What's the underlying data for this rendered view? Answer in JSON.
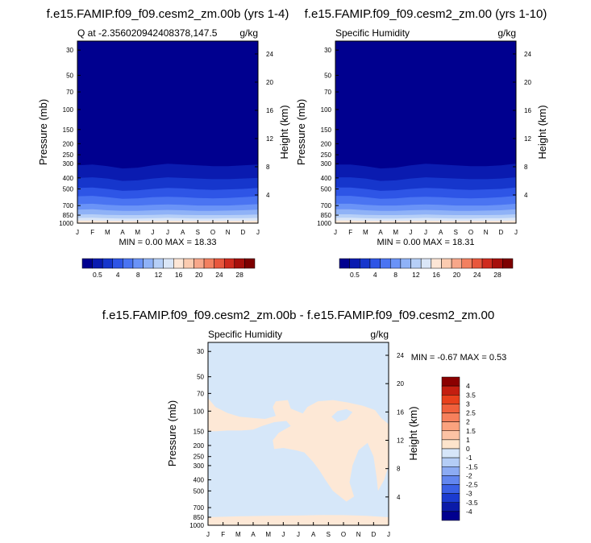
{
  "panels": [
    {
      "title": "f.e15.FAMIP.f09_f09.cesm2_zm.00b (yrs 1-4)",
      "left_label": "Q at -2.356020942408378,147.5",
      "right_label": "g/kg",
      "ylabel": "Pressure (mb)",
      "ylabel_right": "Height (km)",
      "stats": "MIN =   0.00 MAX =  18.33"
    },
    {
      "title": "f.e15.FAMIP.f09_f09.cesm2_zm.00 (yrs 1-10)",
      "left_label": "Specific Humidity",
      "right_label": "g/kg",
      "ylabel": "Pressure (mb)",
      "ylabel_right": "Height (km)",
      "stats": "MIN =   0.00 MAX =  18.31"
    },
    {
      "title": "f.e15.FAMIP.f09_f09.cesm2_zm.00b - f.e15.FAMIP.f09_f09.cesm2_zm.00",
      "left_label": "Specific Humidity",
      "right_label": "g/kg",
      "ylabel": "Pressure (mb)",
      "ylabel_right": "Height (km)",
      "stats": "MIN =  -0.67 MAX =   0.53"
    }
  ],
  "months": [
    "J",
    "F",
    "M",
    "A",
    "M",
    "J",
    "J",
    "A",
    "S",
    "O",
    "N",
    "D",
    "J"
  ],
  "pressure_ticks": [
    "30",
    "50",
    "70",
    "100",
    "150",
    "200",
    "250",
    "300",
    "400",
    "500",
    "700",
    "850",
    "1000"
  ],
  "height_ticks": [
    "24",
    "20",
    "16",
    "12",
    "8",
    "4"
  ],
  "colorbar_top": {
    "labels": [
      "0.5",
      "4",
      "8",
      "12",
      "16",
      "20",
      "24",
      "28"
    ],
    "colors": [
      "#00008f",
      "#0a1bb0",
      "#1636cc",
      "#2e55e6",
      "#4a74f2",
      "#6a93f7",
      "#8fb2f7",
      "#b6cff7",
      "#dae6f7",
      "#fde6d6",
      "#fbcbb0",
      "#f7a78a",
      "#f28060",
      "#e8573d",
      "#cf2b1e",
      "#a60f0b",
      "#7d0000"
    ]
  },
  "colorbar_diff": {
    "labels": [
      "4",
      "3.5",
      "3",
      "2.5",
      "2",
      "1.5",
      "1",
      "0",
      "-1",
      "-1.5",
      "-2",
      "-2.5",
      "-3",
      "-3.5",
      "-4"
    ],
    "colors": [
      "#8b0000",
      "#c41e10",
      "#e8401c",
      "#f0603c",
      "#f6805c",
      "#fba27e",
      "#fcc2a4",
      "#fde4cc",
      "#d6e6f9",
      "#b4cdf6",
      "#8cabf3",
      "#6286ef",
      "#3a60e6",
      "#1b3bd0",
      "#0a1aa8",
      "#00008f"
    ]
  },
  "field_colors": {
    "top_band": "#00008f",
    "diff_positive": "#fde8d6",
    "diff_negative": "#d6e7f9"
  },
  "chart_data": [
    {
      "type": "heatmap",
      "title": "f.e15.FAMIP.f09_f09.cesm2_zm.00b (yrs 1-4)",
      "variable": "Q at -2.356020942408378,147.5",
      "units": "g/kg",
      "x": [
        "J",
        "F",
        "M",
        "A",
        "M",
        "J",
        "J",
        "A",
        "S",
        "O",
        "N",
        "D",
        "J"
      ],
      "y_pressure_mb": [
        30,
        50,
        70,
        100,
        150,
        200,
        250,
        300,
        400,
        500,
        700,
        850,
        1000
      ],
      "y_height_km": [
        24,
        20,
        16,
        12,
        8,
        4
      ],
      "min": 0.0,
      "max": 18.33,
      "contour_levels": [
        0.5,
        2,
        4,
        6,
        8,
        10,
        12,
        14,
        16,
        18,
        20,
        22,
        24,
        26,
        28,
        30
      ],
      "level_pressure_by_month": {
        "0.5": [
          310,
          305,
          315,
          330,
          325,
          310,
          300,
          305,
          310,
          315,
          315,
          310,
          305
        ],
        "2": [
          400,
          395,
          405,
          425,
          420,
          405,
          395,
          400,
          405,
          410,
          410,
          405,
          400
        ],
        "4": [
          490,
          485,
          500,
          520,
          515,
          500,
          490,
          495,
          505,
          510,
          505,
          500,
          490
        ],
        "6": [
          580,
          575,
          590,
          610,
          605,
          590,
          585,
          590,
          600,
          605,
          600,
          590,
          580
        ],
        "8": [
          680,
          675,
          690,
          700,
          700,
          690,
          685,
          690,
          700,
          700,
          700,
          690,
          680
        ],
        "10": [
          760,
          755,
          770,
          780,
          780,
          770,
          765,
          770,
          780,
          780,
          775,
          770,
          760
        ],
        "12": [
          840,
          835,
          845,
          850,
          850,
          845,
          840,
          845,
          850,
          850,
          850,
          845,
          840
        ],
        "14": [
          900,
          895,
          905,
          910,
          910,
          905,
          900,
          905,
          910,
          910,
          905,
          905,
          900
        ],
        "16": [
          950,
          948,
          955,
          958,
          958,
          955,
          952,
          955,
          958,
          958,
          955,
          955,
          950
        ]
      }
    },
    {
      "type": "heatmap",
      "title": "f.e15.FAMIP.f09_f09.cesm2_zm.00 (yrs 1-10)",
      "variable": "Specific Humidity",
      "units": "g/kg",
      "x": [
        "J",
        "F",
        "M",
        "A",
        "M",
        "J",
        "J",
        "A",
        "S",
        "O",
        "N",
        "D",
        "J"
      ],
      "y_pressure_mb": [
        30,
        50,
        70,
        100,
        150,
        200,
        250,
        300,
        400,
        500,
        700,
        850,
        1000
      ],
      "y_height_km": [
        24,
        20,
        16,
        12,
        8,
        4
      ],
      "min": 0.0,
      "max": 18.31,
      "contour_levels": [
        0.5,
        2,
        4,
        6,
        8,
        10,
        12,
        14,
        16,
        18,
        20,
        22,
        24,
        26,
        28,
        30
      ],
      "level_pressure_by_month": {
        "0.5": [
          305,
          305,
          315,
          330,
          325,
          310,
          300,
          305,
          310,
          315,
          315,
          310,
          300
        ],
        "2": [
          395,
          395,
          405,
          425,
          420,
          405,
          395,
          400,
          405,
          410,
          410,
          405,
          395
        ],
        "4": [
          485,
          485,
          500,
          520,
          515,
          500,
          490,
          495,
          505,
          510,
          505,
          500,
          485
        ],
        "6": [
          575,
          575,
          590,
          610,
          605,
          590,
          585,
          590,
          600,
          605,
          600,
          590,
          575
        ],
        "8": [
          675,
          675,
          690,
          700,
          700,
          690,
          685,
          690,
          700,
          700,
          700,
          690,
          675
        ],
        "10": [
          755,
          755,
          770,
          780,
          780,
          770,
          765,
          770,
          780,
          780,
          775,
          770,
          755
        ],
        "12": [
          835,
          835,
          845,
          850,
          850,
          845,
          840,
          845,
          850,
          850,
          850,
          845,
          835
        ],
        "14": [
          895,
          895,
          905,
          910,
          910,
          905,
          900,
          905,
          910,
          910,
          905,
          905,
          895
        ],
        "16": [
          948,
          948,
          955,
          958,
          958,
          955,
          952,
          955,
          958,
          958,
          955,
          955,
          948
        ]
      }
    },
    {
      "type": "heatmap",
      "title": "f.e15.FAMIP.f09_f09.cesm2_zm.00b - f.e15.FAMIP.f09_f09.cesm2_zm.00",
      "variable": "Specific Humidity",
      "units": "g/kg",
      "x": [
        "J",
        "F",
        "M",
        "A",
        "M",
        "J",
        "J",
        "A",
        "S",
        "O",
        "N",
        "D",
        "J"
      ],
      "y_pressure_mb": [
        30,
        50,
        70,
        100,
        150,
        200,
        250,
        300,
        400,
        500,
        700,
        850,
        1000
      ],
      "y_height_km": [
        24,
        20,
        16,
        12,
        8,
        4
      ],
      "min": -0.67,
      "max": 0.53,
      "contour_levels": [
        -4,
        -3.5,
        -3,
        -2.5,
        -2,
        -1.5,
        -1,
        0,
        1,
        1.5,
        2,
        2.5,
        3,
        3.5,
        4
      ]
    }
  ]
}
